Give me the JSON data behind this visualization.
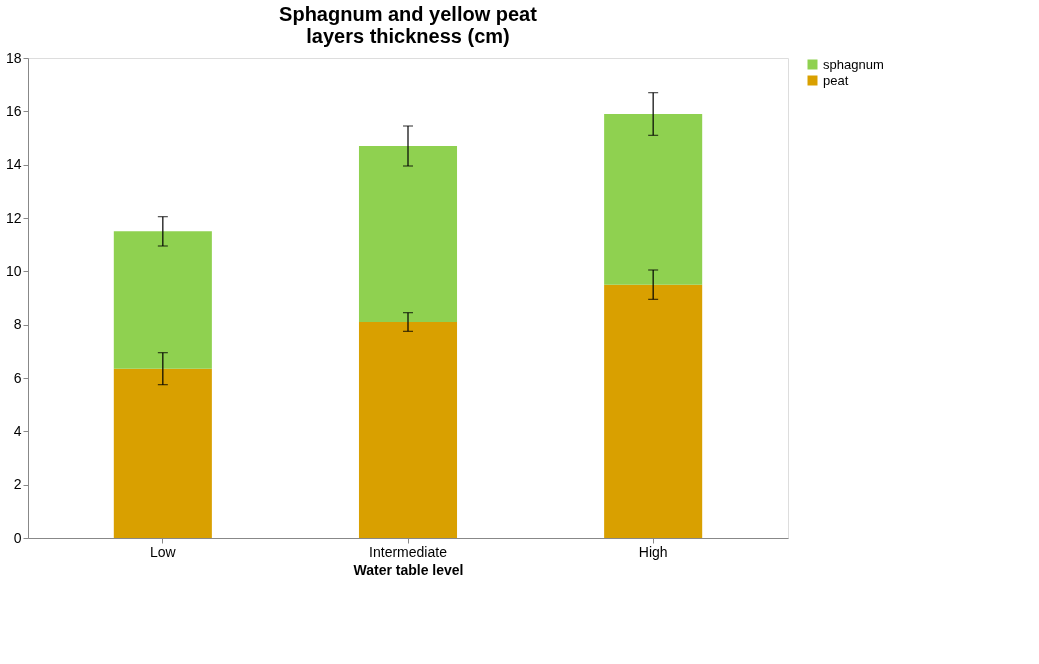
{
  "chart_data": {
    "type": "bar",
    "title": "Sphagnum and yellow peat\nlayers thickness (cm)",
    "xlabel": "Water table level",
    "categories": [
      "Low",
      "Intermediate",
      "High"
    ],
    "stacked": true,
    "series": [
      {
        "name": "peat",
        "color": "#d9a000",
        "values": [
          6.35,
          8.1,
          9.5
        ],
        "errors": [
          0.6,
          0.35,
          0.55
        ]
      },
      {
        "name": "sphagnum",
        "color": "#8fd150",
        "values": [
          5.15,
          6.6,
          6.4
        ],
        "errors": [
          0.55,
          0.75,
          0.8
        ]
      }
    ],
    "ylim": [
      0,
      18
    ],
    "yticks": [
      0,
      2,
      4,
      6,
      8,
      10,
      12,
      14,
      16,
      18
    ],
    "grid": false,
    "legend": "right"
  }
}
